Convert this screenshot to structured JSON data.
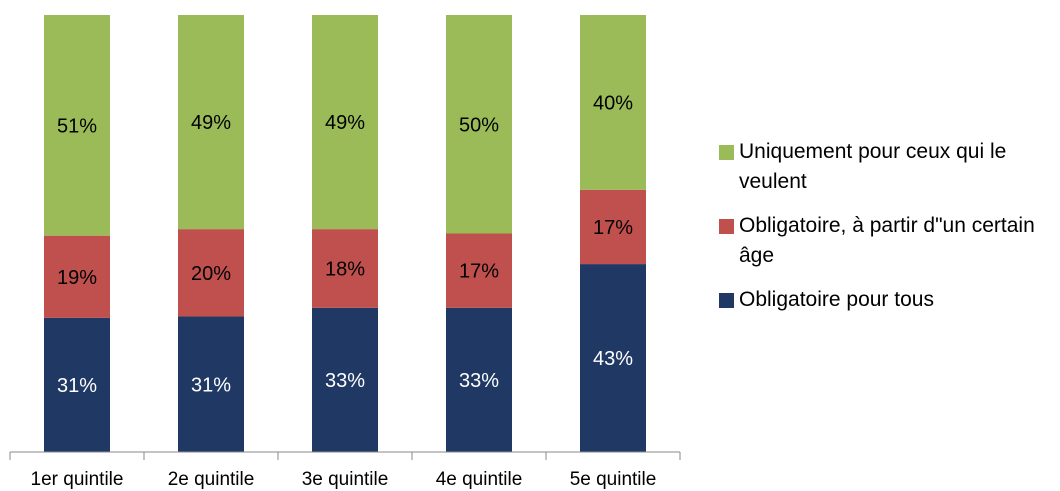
{
  "chart_data": {
    "type": "bar",
    "stacked": true,
    "categories": [
      "1er quintile",
      "2e quintile",
      "3e quintile",
      "4e quintile",
      "5e quintile"
    ],
    "series": [
      {
        "name": "Obligatoire pour tous",
        "values": [
          31,
          31,
          33,
          33,
          43
        ],
        "labels": [
          "31%",
          "31%",
          "33%",
          "33%",
          "43%"
        ],
        "color": "#1f3864",
        "text_color": "#ffffff"
      },
      {
        "name": "Obligatoire, à partir d\"un certain âge",
        "values": [
          19,
          20,
          18,
          17,
          17
        ],
        "labels": [
          "19%",
          "20%",
          "18%",
          "17%",
          "17%"
        ],
        "color": "#c0504d",
        "text_color": "#000000"
      },
      {
        "name": "Uniquement pour ceux qui le veulent",
        "values": [
          51,
          49,
          49,
          50,
          40
        ],
        "labels": [
          "51%",
          "49%",
          "49%",
          "50%",
          "40%"
        ],
        "color": "#9bbb59",
        "text_color": "#000000"
      }
    ],
    "legend_order": [
      2,
      1,
      0
    ],
    "legend_position": "right",
    "grid": false,
    "ylim": [
      0,
      100
    ],
    "title": "",
    "xlabel": "",
    "ylabel": ""
  }
}
